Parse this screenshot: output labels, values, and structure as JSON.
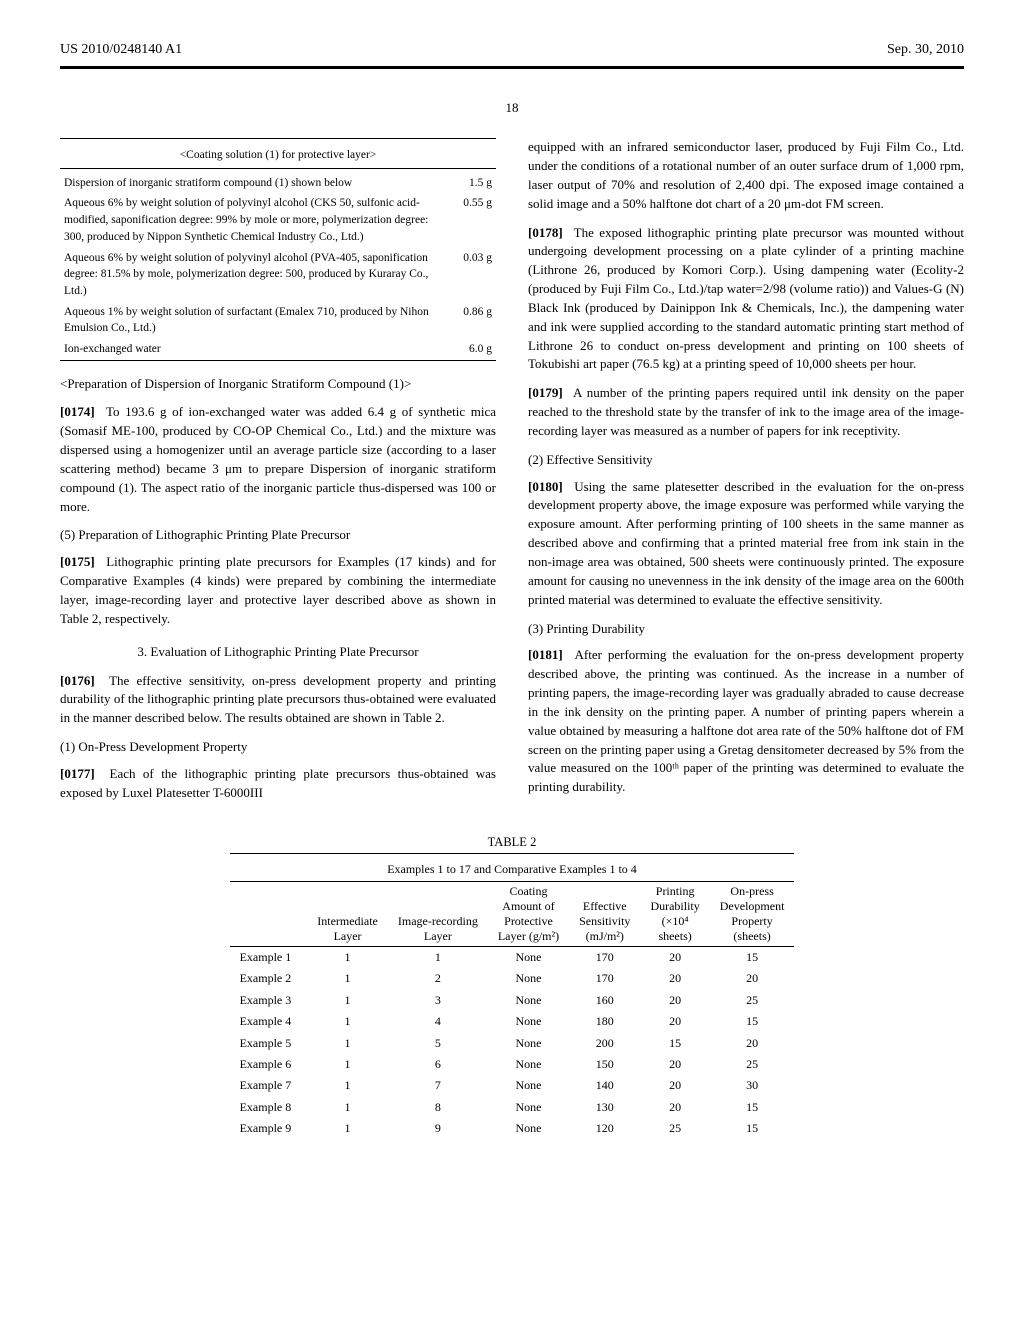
{
  "header": {
    "left": "US 2010/0248140 A1",
    "right": "Sep. 30, 2010",
    "page_number": "18"
  },
  "coating_table": {
    "title": "<Coating solution (1) for protective layer>",
    "rows": [
      {
        "desc": "Dispersion of inorganic stratiform compound (1) shown below",
        "amount": "1.5 g"
      },
      {
        "desc": "Aqueous 6% by weight solution of polyvinyl alcohol (CKS 50, sulfonic acid-modified, saponification degree: 99% by mole or more, polymerization degree: 300, produced by Nippon Synthetic Chemical Industry Co., Ltd.)",
        "amount": "0.55 g"
      },
      {
        "desc": "Aqueous 6% by weight solution of polyvinyl alcohol (PVA-405, saponification degree: 81.5% by mole, polymerization degree: 500, produced by Kuraray Co., Ltd.)",
        "amount": "0.03 g"
      },
      {
        "desc": "Aqueous 1% by weight solution of surfactant (Emalex 710, produced by Nihon Emulsion Co., Ltd.)",
        "amount": "0.86 g"
      },
      {
        "desc": "Ion-exchanged water",
        "amount": "6.0 g"
      }
    ]
  },
  "left_blocks": {
    "prep_heading": "<Preparation of Dispersion of Inorganic Stratiform Compound (1)>",
    "p0174_num": "[0174]",
    "p0174": "To 193.6 g of ion-exchanged water was added 6.4 g of synthetic mica (Somasif ME-100, produced by CO-OP Chemical Co., Ltd.) and the mixture was dispersed using a homogenizer until an average particle size (according to a laser scattering method) became 3 μm to prepare Dispersion of inorganic stratiform compound (1). The aspect ratio of the inorganic particle thus-dispersed was 100 or more.",
    "sec5_heading": "(5) Preparation of Lithographic Printing Plate Precursor",
    "p0175_num": "[0175]",
    "p0175": "Lithographic printing plate precursors for Examples (17 kinds) and for Comparative Examples (4 kinds) were prepared by combining the intermediate layer, image-recording layer and protective layer described above as shown in Table 2, respectively.",
    "sec3_heading": "3. Evaluation of Lithographic Printing Plate Precursor",
    "p0176_num": "[0176]",
    "p0176": "The effective sensitivity, on-press development property and printing durability of the lithographic printing plate precursors thus-obtained were evaluated in the manner described below. The results obtained are shown in Table 2.",
    "sub1_heading": "(1) On-Press Development Property",
    "p0177_num": "[0177]",
    "p0177": "Each of the lithographic printing plate precursors thus-obtained was exposed by Luxel Platesetter T-6000III"
  },
  "right_blocks": {
    "p_cont": "equipped with an infrared semiconductor laser, produced by Fuji Film Co., Ltd. under the conditions of a rotational number of an outer surface drum of 1,000 rpm, laser output of 70% and resolution of 2,400 dpi. The exposed image contained a solid image and a 50% halftone dot chart of a 20 μm-dot FM screen.",
    "p0178_num": "[0178]",
    "p0178": "The exposed lithographic printing plate precursor was mounted without undergoing development processing on a plate cylinder of a printing machine (Lithrone 26, produced by Komori Corp.). Using dampening water (Ecolity-2 (produced by Fuji Film Co., Ltd.)/tap water=2/98 (volume ratio)) and Values-G (N) Black Ink (produced by Dainippon Ink & Chemicals, Inc.), the dampening water and ink were supplied according to the standard automatic printing start method of Lithrone 26 to conduct on-press development and printing on 100 sheets of Tokubishi art paper (76.5 kg) at a printing speed of 10,000 sheets per hour.",
    "p0179_num": "[0179]",
    "p0179": "A number of the printing papers required until ink density on the paper reached to the threshold state by the transfer of ink to the image area of the image-recording layer was measured as a number of papers for ink receptivity.",
    "sub2_heading": "(2) Effective Sensitivity",
    "p0180_num": "[0180]",
    "p0180": "Using the same platesetter described in the evaluation for the on-press development property above, the image exposure was performed while varying the exposure amount. After performing printing of 100 sheets in the same manner as described above and confirming that a printed material free from ink stain in the non-image area was obtained, 500 sheets were continuously printed. The exposure amount for causing no unevenness in the ink density of the image area on the 600th printed material was determined to evaluate the effective sensitivity.",
    "sub3_heading": "(3) Printing Durability",
    "p0181_num": "[0181]",
    "p0181": "After performing the evaluation for the on-press development property described above, the printing was continued. As the increase in a number of printing papers, the image-recording layer was gradually abraded to cause decrease in the ink density on the printing paper. A number of printing papers wherein a value obtained by measuring a halftone dot area rate of the 50% halftone dot of FM screen on the printing paper using a Gretag densitometer decreased by 5% from the value measured on the 100ᵗʰ paper of the printing was determined to evaluate the printing durability."
  },
  "table2": {
    "caption": "TABLE 2",
    "subcaption": "Examples 1 to 17 and Comparative Examples 1 to 4",
    "columns": [
      "",
      "Intermediate\nLayer",
      "Image-recording\nLayer",
      "Coating\nAmount of\nProtective\nLayer (g/m²)",
      "Effective\nSensitivity\n(mJ/m²)",
      "Printing\nDurability\n(×10⁴\nsheets)",
      "On-press\nDevelopment\nProperty\n(sheets)"
    ],
    "rows": [
      [
        "Example 1",
        "1",
        "1",
        "None",
        "170",
        "20",
        "15"
      ],
      [
        "Example 2",
        "1",
        "2",
        "None",
        "170",
        "20",
        "20"
      ],
      [
        "Example 3",
        "1",
        "3",
        "None",
        "160",
        "20",
        "25"
      ],
      [
        "Example 4",
        "1",
        "4",
        "None",
        "180",
        "20",
        "15"
      ],
      [
        "Example 5",
        "1",
        "5",
        "None",
        "200",
        "15",
        "20"
      ],
      [
        "Example 6",
        "1",
        "6",
        "None",
        "150",
        "20",
        "25"
      ],
      [
        "Example 7",
        "1",
        "7",
        "None",
        "140",
        "20",
        "30"
      ],
      [
        "Example 8",
        "1",
        "8",
        "None",
        "130",
        "20",
        "15"
      ],
      [
        "Example 9",
        "1",
        "9",
        "None",
        "120",
        "25",
        "15"
      ]
    ]
  }
}
